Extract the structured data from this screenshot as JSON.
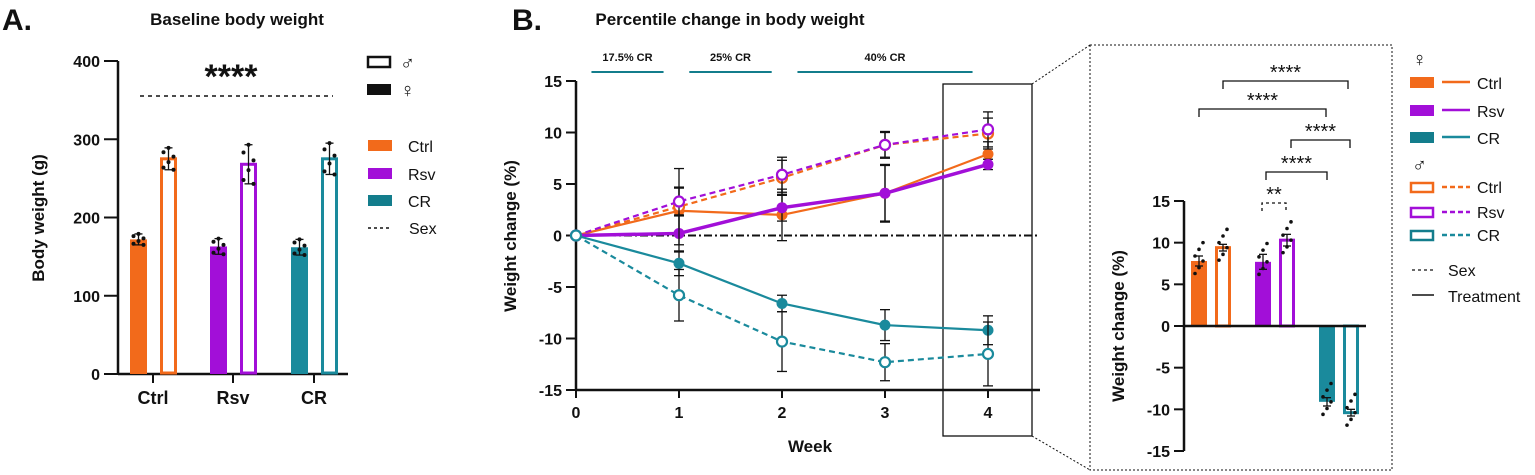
{
  "colors": {
    "ctrl": "#f26a1b",
    "rsv": "#a20fd8",
    "cr": "#1a8a9c",
    "cr_dark": "#137d8c",
    "axis": "#111111"
  },
  "legend_labels": {
    "male": "♂",
    "female": "♀",
    "ctrl": "Ctrl",
    "rsv": "Rsv",
    "cr": "CR",
    "sex": "Sex",
    "treatment": "Treatment"
  },
  "chart_data": [
    {
      "panel": "A.",
      "type": "bar",
      "title": "Baseline body weight",
      "xlabel": "",
      "ylabel": "Body weight (g)",
      "ylim": [
        0,
        400
      ],
      "yticks": [
        "0",
        "100",
        "200",
        "300",
        "400"
      ],
      "categories": [
        "Ctrl",
        "Rsv",
        "CR"
      ],
      "series": [
        {
          "name": "♀",
          "fill": "solid",
          "values": [
            172,
            163,
            162
          ],
          "errors": [
            7,
            10,
            10
          ]
        },
        {
          "name": "♂",
          "fill": "open",
          "values": [
            275,
            268,
            275
          ],
          "errors": [
            14,
            25,
            20
          ]
        }
      ],
      "significance": {
        "label": "****",
        "type": "Sex"
      }
    },
    {
      "panel": "B.",
      "type": "line",
      "title": "Percentile change in body weight",
      "xlabel": "Week",
      "ylabel": "Weight change (%)",
      "x": [
        0,
        1,
        2,
        3,
        4
      ],
      "xticks": [
        "0",
        "1",
        "2",
        "3",
        "4"
      ],
      "ylim": [
        -15,
        15
      ],
      "yticks": [
        "-15",
        "-10",
        "-5",
        "0",
        "5",
        "10",
        "15"
      ],
      "periods": [
        {
          "label": "17.5% CR",
          "from": 0.15,
          "to": 0.85
        },
        {
          "label": "25% CR",
          "from": 1.1,
          "to": 1.9
        },
        {
          "label": "40% CR",
          "from": 2.15,
          "to": 3.85
        }
      ],
      "series": [
        {
          "name": "♀ Ctrl",
          "group": "ctrl",
          "sex": "female",
          "values": [
            0,
            2.4,
            2.0,
            4.1,
            7.9
          ],
          "errors": [
            0,
            2.2,
            2.5,
            2.8,
            1.2
          ]
        },
        {
          "name": "♀ Rsv",
          "group": "rsv",
          "sex": "female",
          "values": [
            0,
            0.2,
            2.7,
            4.1,
            6.9
          ],
          "errors": [
            0,
            1.8,
            1.3,
            2.7,
            0.5
          ]
        },
        {
          "name": "♀ CR",
          "group": "cr",
          "sex": "female",
          "values": [
            0,
            -2.7,
            -6.6,
            -8.7,
            -9.2
          ],
          "errors": [
            0,
            1.2,
            0.8,
            1.5,
            1.4
          ]
        },
        {
          "name": "♂ Ctrl",
          "group": "ctrl",
          "sex": "male",
          "values": [
            0,
            2.8,
            5.6,
            8.8,
            9.9
          ],
          "errors": [
            0,
            3.7,
            1.7,
            1.3,
            1.5
          ]
        },
        {
          "name": "♂ Rsv",
          "group": "rsv",
          "sex": "male",
          "values": [
            0,
            3.3,
            5.9,
            8.8,
            10.3
          ],
          "errors": [
            0,
            1.4,
            1.7,
            1.2,
            1.7
          ]
        },
        {
          "name": "♂ CR",
          "group": "cr",
          "sex": "male",
          "values": [
            0,
            -5.8,
            -10.3,
            -12.3,
            -11.5
          ],
          "errors": [
            0,
            2.5,
            2.9,
            1.8,
            3.1
          ]
        }
      ]
    },
    {
      "panel": "B-inset",
      "type": "bar",
      "title": "",
      "xlabel": "",
      "ylabel": "Weight change (%)",
      "ylim": [
        -15,
        15
      ],
      "yticks": [
        "-15",
        "-10",
        "-5",
        "0",
        "5",
        "10",
        "15"
      ],
      "bars": [
        {
          "name": "♀ Ctrl",
          "group": "ctrl",
          "sex": "female",
          "value": 7.8,
          "error": 0.6
        },
        {
          "name": "♂ Ctrl",
          "group": "ctrl",
          "sex": "male",
          "value": 9.4,
          "error": 0.4
        },
        {
          "name": "♀ Rsv",
          "group": "rsv",
          "sex": "female",
          "value": 7.7,
          "error": 0.9
        },
        {
          "name": "♂ Rsv",
          "group": "rsv",
          "sex": "male",
          "value": 10.3,
          "error": 0.7
        },
        {
          "name": "♀ CR",
          "group": "cr",
          "sex": "female",
          "value": -9.1,
          "error": 0.5
        },
        {
          "name": "♂ CR",
          "group": "cr",
          "sex": "male",
          "value": -10.4,
          "error": 0.4
        }
      ],
      "comparisons": [
        {
          "label": "****",
          "from": 1,
          "to": 5,
          "type": "Treatment"
        },
        {
          "label": "****",
          "from": 0,
          "to": 4,
          "type": "Treatment"
        },
        {
          "label": "****",
          "from": 3,
          "to": 5,
          "type": "Treatment"
        },
        {
          "label": "****",
          "from": 2,
          "to": 4,
          "type": "Treatment"
        },
        {
          "label": "**",
          "from": 2,
          "to": 3,
          "type": "Sex"
        }
      ]
    }
  ]
}
